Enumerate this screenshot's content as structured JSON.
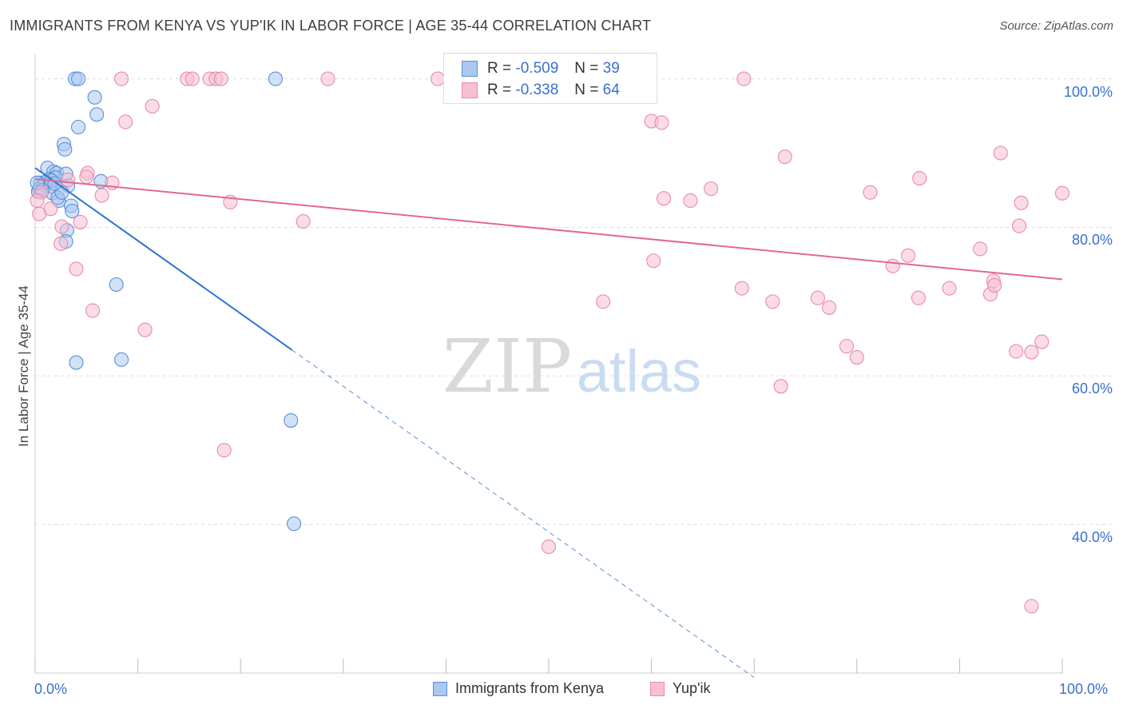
{
  "title": "IMMIGRANTS FROM KENYA VS YUP'IK IN LABOR FORCE | AGE 35-44 CORRELATION CHART",
  "source": "Source: ZipAtlas.com",
  "watermark": {
    "zip": "ZIP",
    "atlas": "atlas"
  },
  "colors": {
    "blue_fill": "#a9c8f2",
    "blue_stroke": "#5b8fd6",
    "blue_line": "#2f73d0",
    "pink_fill": "#f7bfd1",
    "pink_stroke": "#e98aa8",
    "pink_line": "#e26792",
    "tick_text": "#3a6fd1",
    "grid": "#dddddd"
  },
  "stats": [
    {
      "r_label": "R =",
      "r_value": "-0.509",
      "n_label": "N =",
      "n_value": "39",
      "series": "blue"
    },
    {
      "r_label": "R =",
      "r_value": "-0.338",
      "n_label": "N =",
      "n_value": "64",
      "series": "pink"
    }
  ],
  "chart_data": {
    "type": "scatter",
    "ylabel": "In Labor Force | Age 35-44",
    "xlim": [
      0,
      100
    ],
    "ylim": [
      20,
      102
    ],
    "x_tick_labels": [
      "0.0%",
      "100.0%"
    ],
    "y_ticks": [
      {
        "value": 100,
        "label": "100.0%"
      },
      {
        "value": 80,
        "label": "80.0%"
      },
      {
        "value": 60,
        "label": "60.0%"
      },
      {
        "value": 40,
        "label": "40.0%"
      }
    ],
    "grid": true,
    "legend": "bottom",
    "series": [
      {
        "name": "Immigrants from Kenya",
        "color": "blue",
        "trend": {
          "x0": 0,
          "y0": 88,
          "x1": 25,
          "y1": 63.5,
          "dash_to_x": 70
        },
        "points": [
          [
            3.9,
            100
          ],
          [
            4.2,
            100
          ],
          [
            23.4,
            100
          ],
          [
            5.8,
            97.5
          ],
          [
            6.0,
            95.2
          ],
          [
            4.2,
            93.5
          ],
          [
            2.8,
            91.2
          ],
          [
            2.9,
            90.5
          ],
          [
            1.2,
            88.0
          ],
          [
            1.8,
            87.5
          ],
          [
            2.1,
            87.3
          ],
          [
            3.0,
            87.2
          ],
          [
            1.4,
            86.5
          ],
          [
            2.0,
            86.7
          ],
          [
            0.5,
            86.0
          ],
          [
            0.8,
            85.8
          ],
          [
            1.5,
            85.5
          ],
          [
            0.4,
            85.2
          ],
          [
            6.4,
            86.2
          ],
          [
            3.2,
            85.6
          ],
          [
            1.0,
            86.1
          ],
          [
            0.3,
            84.8
          ],
          [
            1.7,
            84.6
          ],
          [
            2.3,
            83.6
          ],
          [
            3.5,
            82.9
          ],
          [
            2.2,
            84.0
          ],
          [
            3.6,
            82.2
          ],
          [
            3.1,
            79.6
          ],
          [
            3.0,
            78.1
          ],
          [
            0.7,
            85.0
          ],
          [
            2.6,
            84.7
          ],
          [
            1.6,
            86.3
          ],
          [
            0.2,
            86.0
          ],
          [
            7.9,
            72.3
          ],
          [
            4.0,
            61.8
          ],
          [
            8.4,
            62.2
          ],
          [
            24.9,
            54.0
          ],
          [
            25.2,
            40.1
          ],
          [
            1.9,
            85.9
          ]
        ]
      },
      {
        "name": "Yup'ik",
        "color": "pink",
        "trend": {
          "x0": 0,
          "y0": 86.5,
          "x1": 100,
          "y1": 73.0
        },
        "points": [
          [
            8.4,
            100
          ],
          [
            14.8,
            100
          ],
          [
            15.3,
            100
          ],
          [
            17.0,
            100
          ],
          [
            17.6,
            100
          ],
          [
            18.1,
            100
          ],
          [
            28.5,
            100
          ],
          [
            39.2,
            100
          ],
          [
            59.5,
            100
          ],
          [
            69.0,
            100
          ],
          [
            8.8,
            94.2
          ],
          [
            11.4,
            96.3
          ],
          [
            60.0,
            94.3
          ],
          [
            61.0,
            94.1
          ],
          [
            73.0,
            89.5
          ],
          [
            94.0,
            90.0
          ],
          [
            5.1,
            87.3
          ],
          [
            7.5,
            86.0
          ],
          [
            5.0,
            86.8
          ],
          [
            3.2,
            86.4
          ],
          [
            6.5,
            84.3
          ],
          [
            19.0,
            83.4
          ],
          [
            0.6,
            84.7
          ],
          [
            1.5,
            82.5
          ],
          [
            0.4,
            81.8
          ],
          [
            2.6,
            80.1
          ],
          [
            4.4,
            80.7
          ],
          [
            26.1,
            80.8
          ],
          [
            61.2,
            83.9
          ],
          [
            63.8,
            83.6
          ],
          [
            65.8,
            85.2
          ],
          [
            81.3,
            84.7
          ],
          [
            86.1,
            86.6
          ],
          [
            96.0,
            83.3
          ],
          [
            100.0,
            84.6
          ],
          [
            95.8,
            80.2
          ],
          [
            2.5,
            77.8
          ],
          [
            4.0,
            74.4
          ],
          [
            60.2,
            75.5
          ],
          [
            83.5,
            74.8
          ],
          [
            85.0,
            76.2
          ],
          [
            92.0,
            77.1
          ],
          [
            93.3,
            72.8
          ],
          [
            93.0,
            71.0
          ],
          [
            89.0,
            71.8
          ],
          [
            68.8,
            71.8
          ],
          [
            71.8,
            70.0
          ],
          [
            76.2,
            70.5
          ],
          [
            77.3,
            69.2
          ],
          [
            86.0,
            70.5
          ],
          [
            55.3,
            70.0
          ],
          [
            5.6,
            68.8
          ],
          [
            10.7,
            66.2
          ],
          [
            79.0,
            64.0
          ],
          [
            80.0,
            62.5
          ],
          [
            95.5,
            63.3
          ],
          [
            97.0,
            63.2
          ],
          [
            98.0,
            64.6
          ],
          [
            72.6,
            58.6
          ],
          [
            18.4,
            50.0
          ],
          [
            50.0,
            37.0
          ],
          [
            97.0,
            29.0
          ],
          [
            0.2,
            83.6
          ],
          [
            93.4,
            72.2
          ]
        ]
      }
    ]
  }
}
